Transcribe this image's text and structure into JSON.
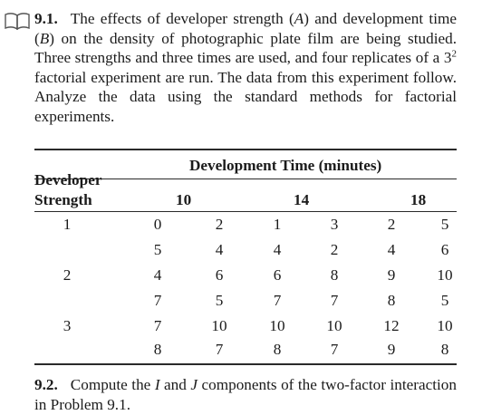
{
  "problem1": {
    "number": "9.1.",
    "text_before_A": "The effects of developer strength (",
    "A": "A",
    "text_between": ") and development time (",
    "B": "B",
    "text_before_exp": ") on the density of photographic plate film are being studied. Three strengths and three times are used, and four replicates of a 3",
    "exponent": "2",
    "text_after_exp": " factorial experiment are run. The data from this experiment follow. Analyze the data using the standard methods for factorial experiments."
  },
  "table": {
    "col_group_header": "Development Time (minutes)",
    "row_header_line1": "Developer",
    "row_header_line2": "Strength",
    "times": [
      "10",
      "14",
      "18"
    ],
    "strengths": [
      "1",
      "2",
      "3"
    ],
    "rows": [
      [
        "0",
        "2",
        "1",
        "3",
        "2",
        "5"
      ],
      [
        "5",
        "4",
        "4",
        "2",
        "4",
        "6"
      ],
      [
        "4",
        "6",
        "6",
        "8",
        "9",
        "10"
      ],
      [
        "7",
        "5",
        "7",
        "7",
        "8",
        "5"
      ],
      [
        "7",
        "10",
        "10",
        "10",
        "12",
        "10"
      ],
      [
        "8",
        "7",
        "8",
        "7",
        "9",
        "8"
      ]
    ]
  },
  "problem2": {
    "number": "9.2.",
    "text_before_I": "Compute the ",
    "I": "I",
    "text_between": " and ",
    "J": "J",
    "text_after": " components of the two-factor interaction in Problem 9.1."
  },
  "icon": "book-icon"
}
